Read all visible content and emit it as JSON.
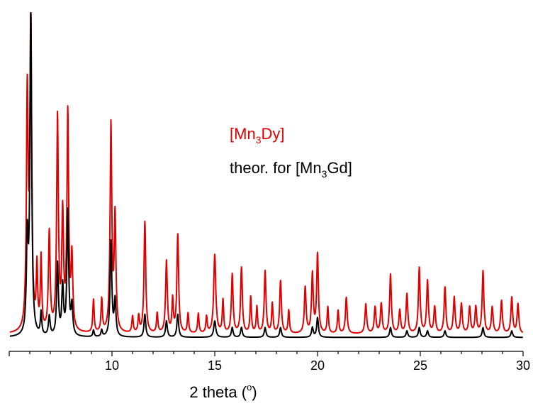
{
  "chart_data": {
    "type": "line",
    "title": "",
    "xlabel": "2 theta (°)",
    "xlabel_parts": {
      "main": "2 theta (",
      "sup": "o",
      "end": ")"
    },
    "ylabel": "",
    "xlim": [
      5.0,
      30.0
    ],
    "ylim": [
      0,
      100
    ],
    "x_ticks": [
      10,
      15,
      20,
      25,
      30
    ],
    "y_axis_visible": false,
    "grid": false,
    "legend": "inline-text-upper-middle",
    "colors": {
      "red": "#e00000",
      "black": "#000000"
    },
    "series": [
      {
        "name": "[Mn3Dy]",
        "label_parts": {
          "pre": "[Mn",
          "sub": "3",
          "post": "Dy]"
        },
        "color": "#e00000",
        "baseline": 2,
        "peaks": [
          [
            5.88,
            71,
            0.05
          ],
          [
            6.05,
            98,
            0.05
          ],
          [
            6.35,
            19,
            0.04
          ],
          [
            6.55,
            22,
            0.04
          ],
          [
            6.95,
            30,
            0.05
          ],
          [
            7.35,
            65,
            0.05
          ],
          [
            7.6,
            35,
            0.05
          ],
          [
            7.85,
            66,
            0.05
          ],
          [
            8.05,
            22,
            0.05
          ],
          [
            9.1,
            10,
            0.04
          ],
          [
            9.5,
            10,
            0.04
          ],
          [
            9.95,
            63,
            0.05
          ],
          [
            10.15,
            35,
            0.05
          ],
          [
            11.0,
            5,
            0.04
          ],
          [
            11.3,
            5,
            0.04
          ],
          [
            11.6,
            34,
            0.05
          ],
          [
            12.2,
            6,
            0.04
          ],
          [
            12.65,
            22,
            0.05
          ],
          [
            12.95,
            10,
            0.04
          ],
          [
            13.2,
            30,
            0.05
          ],
          [
            13.7,
            6,
            0.04
          ],
          [
            14.2,
            6,
            0.04
          ],
          [
            14.6,
            5,
            0.04
          ],
          [
            15.0,
            24,
            0.06
          ],
          [
            15.4,
            10,
            0.04
          ],
          [
            15.85,
            18,
            0.05
          ],
          [
            16.3,
            20,
            0.05
          ],
          [
            16.75,
            11,
            0.04
          ],
          [
            17.05,
            8,
            0.04
          ],
          [
            17.45,
            19,
            0.05
          ],
          [
            17.8,
            9,
            0.04
          ],
          [
            18.2,
            16,
            0.05
          ],
          [
            18.6,
            7,
            0.04
          ],
          [
            19.4,
            14,
            0.05
          ],
          [
            19.75,
            18,
            0.05
          ],
          [
            20.0,
            24,
            0.05
          ],
          [
            20.5,
            8,
            0.04
          ],
          [
            21.0,
            7,
            0.04
          ],
          [
            21.4,
            11,
            0.05
          ],
          [
            22.35,
            9,
            0.05
          ],
          [
            22.8,
            8,
            0.05
          ],
          [
            23.1,
            9,
            0.05
          ],
          [
            23.55,
            18,
            0.05
          ],
          [
            24.0,
            7,
            0.05
          ],
          [
            24.35,
            12,
            0.05
          ],
          [
            24.95,
            20,
            0.05
          ],
          [
            25.35,
            16,
            0.05
          ],
          [
            25.7,
            8,
            0.05
          ],
          [
            26.2,
            14,
            0.05
          ],
          [
            26.65,
            11,
            0.05
          ],
          [
            27.0,
            9,
            0.05
          ],
          [
            27.4,
            8,
            0.05
          ],
          [
            27.7,
            8,
            0.05
          ],
          [
            28.05,
            19,
            0.05
          ],
          [
            28.5,
            8,
            0.05
          ],
          [
            28.95,
            10,
            0.05
          ],
          [
            29.45,
            11,
            0.05
          ],
          [
            29.75,
            9,
            0.05
          ]
        ]
      },
      {
        "name": "theor. for [Mn3Gd]",
        "label_parts": {
          "pre": "theor. for [Mn",
          "sub": "3",
          "post": "Gd]"
        },
        "color": "#000000",
        "baseline": 1,
        "peaks": [
          [
            5.88,
            28,
            0.05
          ],
          [
            6.05,
            99,
            0.05
          ],
          [
            6.55,
            7,
            0.04
          ],
          [
            6.95,
            6,
            0.05
          ],
          [
            7.35,
            22,
            0.05
          ],
          [
            7.6,
            15,
            0.05
          ],
          [
            7.85,
            38,
            0.05
          ],
          [
            8.05,
            9,
            0.05
          ],
          [
            9.1,
            2,
            0.04
          ],
          [
            9.5,
            2,
            0.04
          ],
          [
            9.95,
            29,
            0.05
          ],
          [
            10.15,
            11,
            0.05
          ],
          [
            11.6,
            7,
            0.05
          ],
          [
            12.65,
            5,
            0.05
          ],
          [
            13.2,
            7,
            0.05
          ],
          [
            15.0,
            5,
            0.06
          ],
          [
            15.85,
            3,
            0.05
          ],
          [
            16.3,
            3,
            0.05
          ],
          [
            17.45,
            3,
            0.05
          ],
          [
            18.2,
            3,
            0.05
          ],
          [
            19.75,
            3,
            0.05
          ],
          [
            20.0,
            6,
            0.05
          ],
          [
            23.55,
            3,
            0.05
          ],
          [
            24.35,
            2,
            0.05
          ],
          [
            24.95,
            3,
            0.05
          ],
          [
            25.35,
            2,
            0.05
          ],
          [
            26.2,
            2,
            0.05
          ],
          [
            28.05,
            3,
            0.05
          ],
          [
            29.45,
            2,
            0.05
          ]
        ]
      }
    ]
  }
}
